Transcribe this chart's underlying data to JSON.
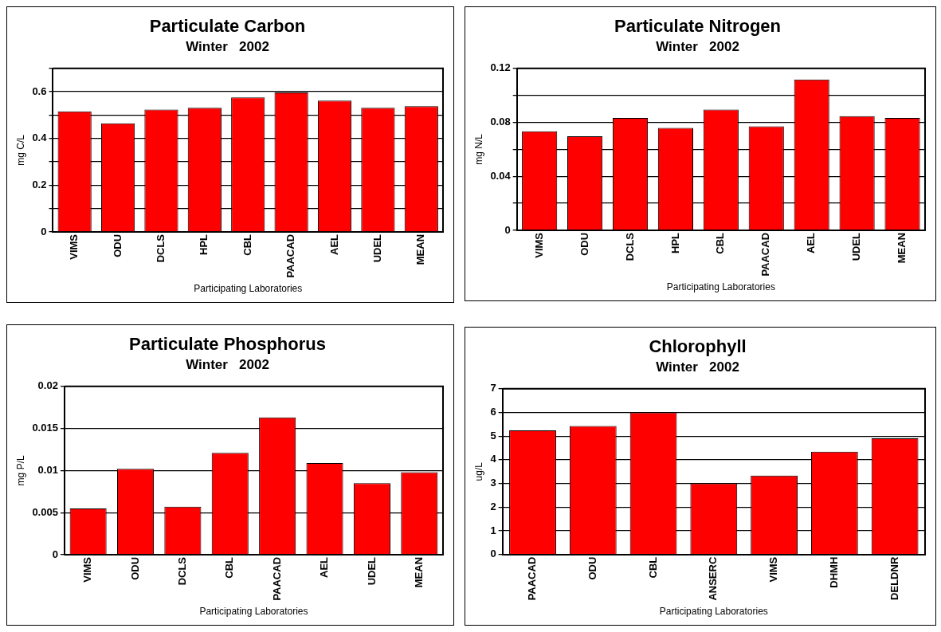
{
  "chart_data": [
    {
      "type": "bar",
      "title": "Particulate Carbon",
      "subtitle": "Winter   2002",
      "xlabel": "Participating Laboratories",
      "ylabel": "mg C/L",
      "categories": [
        "VIMS",
        "ODU",
        "DCLS",
        "HPL",
        "CBL",
        "PAACAD",
        "AEL",
        "UDEL",
        "MEAN"
      ],
      "values": [
        0.516,
        0.465,
        0.524,
        0.531,
        0.576,
        0.597,
        0.562,
        0.531,
        0.538
      ],
      "color": "#ff0000",
      "ylim": [
        0,
        0.7
      ],
      "yticks": [
        0,
        {
          "value": 0.1,
          "label": null
        },
        0.2,
        {
          "value": 0.3,
          "label": null
        },
        0.4,
        {
          "value": 0.5,
          "label": null
        },
        0.6,
        {
          "value": 0.7,
          "label": null
        }
      ],
      "grid": "y"
    },
    {
      "type": "bar",
      "title": "Particulate Nitrogen",
      "subtitle": "Winter   2002",
      "xlabel": "Participating Laboratories",
      "ylabel": "mg N/L",
      "categories": [
        "VIMS",
        "ODU",
        "DCLS",
        "HPL",
        "CBL",
        "PAACAD",
        "AEL",
        "UDEL",
        "MEAN"
      ],
      "values": [
        0.0734,
        0.0697,
        0.0833,
        0.0759,
        0.0895,
        0.0771,
        0.1118,
        0.0846,
        0.0833
      ],
      "color": "#ff0000",
      "ylim": [
        0,
        0.12
      ],
      "yticks": [
        0,
        {
          "value": 0.02,
          "label": null
        },
        0.04,
        {
          "value": 0.06,
          "label": null
        },
        0.08,
        {
          "value": 0.1,
          "label": null
        },
        0.12
      ],
      "grid": "y"
    },
    {
      "type": "bar",
      "title": "Particulate Phosphorus",
      "subtitle": "Winter   2002",
      "xlabel": "Participating Laboratories",
      "ylabel": "mg P/L",
      "categories": [
        "VIMS",
        "ODU",
        "DCLS",
        "CBL",
        "PAACAD",
        "AEL",
        "UDEL",
        "MEAN"
      ],
      "values": [
        0.0055,
        0.0102,
        0.0057,
        0.0121,
        0.0163,
        0.0109,
        0.0085,
        0.0098
      ],
      "color": "#ff0000",
      "ylim": [
        0,
        0.02
      ],
      "yticks": [
        0,
        0.005,
        0.01,
        0.015,
        0.02
      ],
      "grid": "y"
    },
    {
      "type": "bar",
      "title": "Chlorophyll",
      "subtitle": "Winter   2002",
      "xlabel": "Participating Laboratories",
      "ylabel": "ug/L",
      "categories": [
        "PAACAD",
        "ODU",
        "CBL",
        "ANSERC",
        "VIMS",
        "DHMH",
        "DELDNR"
      ],
      "values": [
        5.24,
        5.43,
        6.0,
        3.0,
        3.33,
        4.34,
        4.91
      ],
      "color": "#ff0000",
      "ylim": [
        0,
        7
      ],
      "yticks": [
        0,
        1,
        2,
        3,
        4,
        5,
        6,
        7
      ],
      "grid": "y"
    }
  ]
}
